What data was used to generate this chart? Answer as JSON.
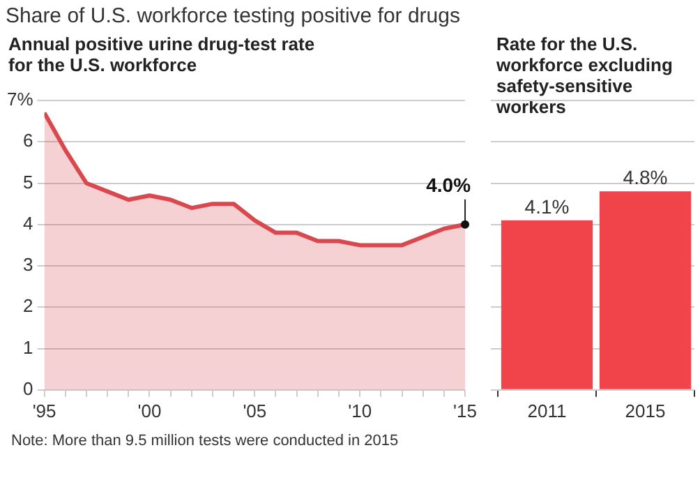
{
  "chart_data": [
    {
      "type": "area",
      "title": "Share of U.S. workforce testing positive for drugs",
      "subtitle": "Annual positive urine drug-test rate for the U.S. workforce",
      "x": [
        1995,
        1996,
        1997,
        1998,
        1999,
        2000,
        2001,
        2002,
        2003,
        2004,
        2005,
        2006,
        2007,
        2008,
        2009,
        2010,
        2011,
        2012,
        2013,
        2014,
        2015
      ],
      "series": [
        {
          "color": "#d9484e",
          "values": [
            6.7,
            5.8,
            5.0,
            4.8,
            4.6,
            4.7,
            4.6,
            4.4,
            4.5,
            4.5,
            4.1,
            3.8,
            3.8,
            3.6,
            3.6,
            3.5,
            3.5,
            3.5,
            3.7,
            3.9,
            4.0
          ]
        }
      ],
      "xlim": [
        1995,
        2015
      ],
      "xticks": [
        {
          "value": 1995,
          "label": "'95"
        },
        {
          "value": 1996,
          "label": null
        },
        {
          "value": 1997,
          "label": null
        },
        {
          "value": 1998,
          "label": null
        },
        {
          "value": 1999,
          "label": null
        },
        {
          "value": 2000,
          "label": "'00"
        },
        {
          "value": 2001,
          "label": null
        },
        {
          "value": 2002,
          "label": null
        },
        {
          "value": 2003,
          "label": null
        },
        {
          "value": 2004,
          "label": null
        },
        {
          "value": 2005,
          "label": "'05"
        },
        {
          "value": 2006,
          "label": null
        },
        {
          "value": 2007,
          "label": null
        },
        {
          "value": 2008,
          "label": null
        },
        {
          "value": 2009,
          "label": null
        },
        {
          "value": 2010,
          "label": "'10"
        },
        {
          "value": 2011,
          "label": null
        },
        {
          "value": 2012,
          "label": null
        },
        {
          "value": 2013,
          "label": null
        },
        {
          "value": 2014,
          "label": null
        },
        {
          "value": 2015,
          "label": "'15"
        }
      ],
      "ylim": [
        0,
        7
      ],
      "yticks": [
        0,
        1,
        2,
        3,
        4,
        5,
        6,
        {
          "value": 7,
          "label": "7%"
        }
      ],
      "grid": "y",
      "annotations": [
        {
          "text": "4.0%",
          "x": 2015,
          "y": 4.0
        },
        "Note: More than 9.5 million tests were conducted in 2015"
      ]
    },
    {
      "type": "bar",
      "title": "Rate for the U.S. workforce excluding safety-sensitive workers",
      "categories": [
        "2011",
        "2015"
      ],
      "values": [
        4.1,
        4.8
      ],
      "color": "#f0434a",
      "value_labels": [
        "4.1%",
        "4.8%"
      ],
      "ylim": [
        0,
        7
      ],
      "yticks": [
        0,
        1,
        2,
        3,
        4,
        5,
        6,
        7
      ],
      "tick_labels": "x",
      "grid": "y"
    }
  ]
}
